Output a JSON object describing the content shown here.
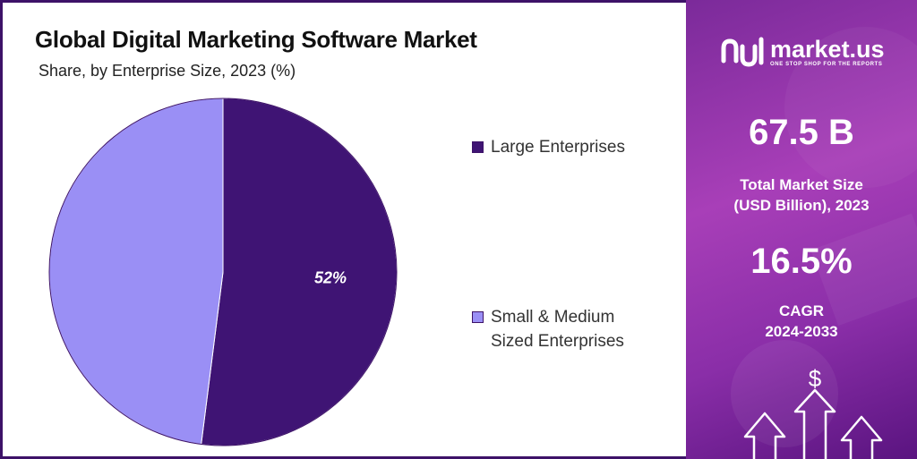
{
  "chart_data": {
    "type": "pie",
    "title": "Global Digital Marketing Software Market",
    "subtitle": "Share, by Enterprise Size, 2023 (%)",
    "slices": [
      {
        "name": "Large Enterprises",
        "value": 52,
        "label": "52%",
        "color": "#3f1474"
      },
      {
        "name": "Small & Medium Sized Enterprises",
        "value": 48,
        "label": "",
        "color": "#9a8ff5"
      }
    ],
    "legend_items": [
      {
        "label": "Large Enterprises",
        "color": "#3f1474"
      },
      {
        "label": "Small & Medium Sized Enterprises",
        "color": "#9a8ff5"
      }
    ],
    "legend_position": "right"
  },
  "brand": {
    "name": "market.us",
    "tagline": "ONE STOP SHOP FOR THE REPORTS"
  },
  "stats": {
    "market_size_value": "67.5 B",
    "market_size_label_line1": "Total Market Size",
    "market_size_label_line2": "(USD Billion), 2023",
    "cagr_value": "16.5%",
    "cagr_label_line1": "CAGR",
    "cagr_label_line2": "2024-2033"
  },
  "icons": {
    "logo": "market-us-logo-icon",
    "dollar": "dollar-icon",
    "arrows": "growth-arrows-icon"
  },
  "dollar_symbol": "$",
  "colors": {
    "border": "#3d1268",
    "panel_gradient_start": "#7b2a9a",
    "panel_gradient_end": "#5a1480"
  }
}
